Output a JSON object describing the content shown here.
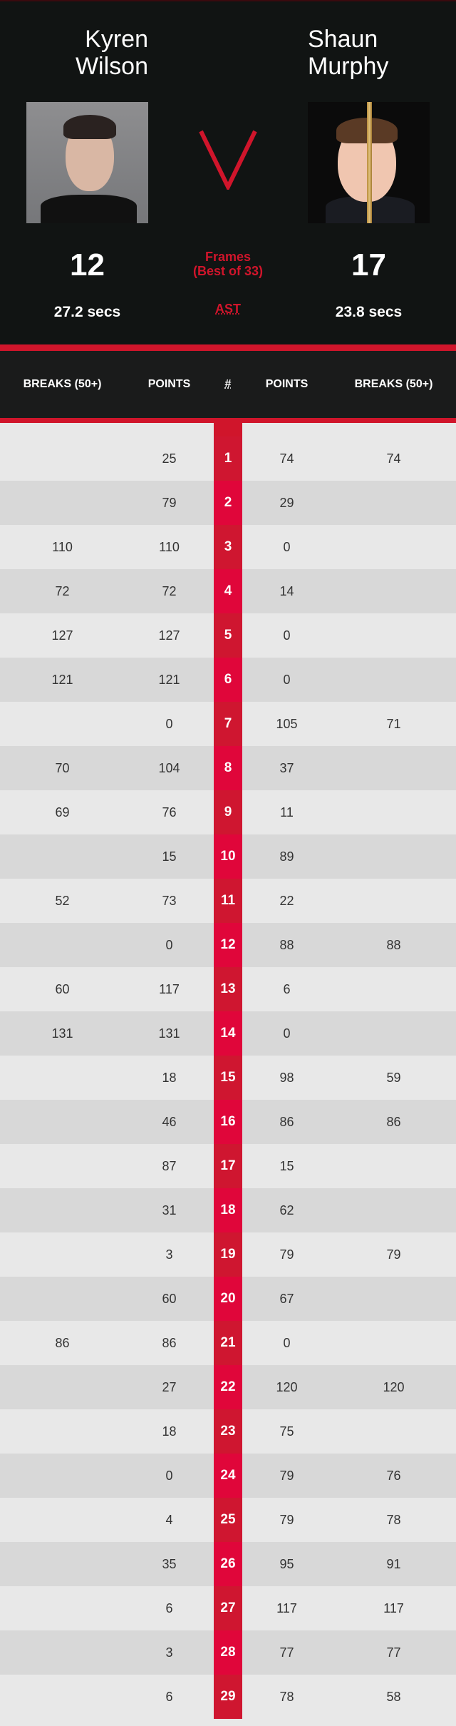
{
  "player_left": {
    "first": "Kyren",
    "last": "Wilson",
    "frames": "12",
    "avg_shot_time": "27.2 secs"
  },
  "player_right": {
    "first": "Shaun",
    "last": "Murphy",
    "frames": "17",
    "avg_shot_time": "23.8 secs"
  },
  "center": {
    "versus": "V",
    "frames_label": "Frames",
    "best_of": "(Best of 33)",
    "ast_label": "AST"
  },
  "columns": [
    "BREAKS (50+)",
    "POINTS",
    "#",
    "POINTS",
    "BREAKS (50+)"
  ],
  "colors": {
    "accent": "#d0152b",
    "header_bg": "#111413"
  },
  "frames": [
    [
      "",
      "25",
      "1",
      "74",
      "74"
    ],
    [
      "",
      "79",
      "2",
      "29",
      ""
    ],
    [
      "110",
      "110",
      "3",
      "0",
      ""
    ],
    [
      "72",
      "72",
      "4",
      "14",
      ""
    ],
    [
      "127",
      "127",
      "5",
      "0",
      ""
    ],
    [
      "121",
      "121",
      "6",
      "0",
      ""
    ],
    [
      "",
      "0",
      "7",
      "105",
      "71"
    ],
    [
      "70",
      "104",
      "8",
      "37",
      ""
    ],
    [
      "69",
      "76",
      "9",
      "11",
      ""
    ],
    [
      "",
      "15",
      "10",
      "89",
      ""
    ],
    [
      "52",
      "73",
      "11",
      "22",
      ""
    ],
    [
      "",
      "0",
      "12",
      "88",
      "88"
    ],
    [
      "60",
      "117",
      "13",
      "6",
      ""
    ],
    [
      "131",
      "131",
      "14",
      "0",
      ""
    ],
    [
      "",
      "18",
      "15",
      "98",
      "59"
    ],
    [
      "",
      "46",
      "16",
      "86",
      "86"
    ],
    [
      "",
      "87",
      "17",
      "15",
      ""
    ],
    [
      "",
      "31",
      "18",
      "62",
      ""
    ],
    [
      "",
      "3",
      "19",
      "79",
      "79"
    ],
    [
      "",
      "60",
      "20",
      "67",
      ""
    ],
    [
      "86",
      "86",
      "21",
      "0",
      ""
    ],
    [
      "",
      "27",
      "22",
      "120",
      "120"
    ],
    [
      "",
      "18",
      "23",
      "75",
      ""
    ],
    [
      "",
      "0",
      "24",
      "79",
      "76"
    ],
    [
      "",
      "4",
      "25",
      "79",
      "78"
    ],
    [
      "",
      "35",
      "26",
      "95",
      "91"
    ],
    [
      "",
      "6",
      "27",
      "117",
      "117"
    ],
    [
      "",
      "3",
      "28",
      "77",
      "77"
    ],
    [
      "",
      "6",
      "29",
      "78",
      "58"
    ]
  ]
}
